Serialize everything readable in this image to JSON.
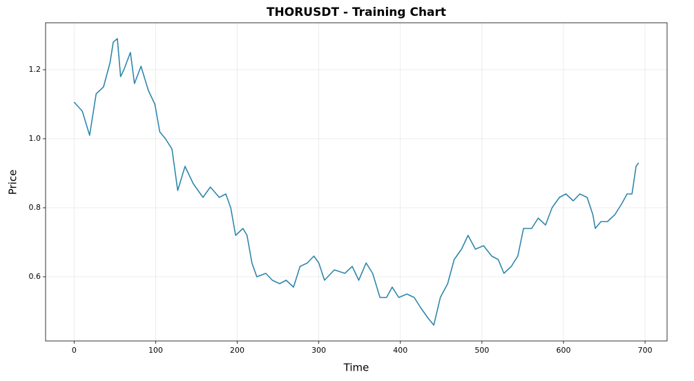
{
  "chart_data": {
    "type": "line",
    "title": "THORUSDT - Training Chart",
    "x_label": "Time",
    "y_label": "Price",
    "x": [
      0,
      10,
      19,
      27,
      36,
      44,
      48,
      53,
      57,
      61,
      69,
      74,
      82,
      91,
      99,
      105,
      112,
      120,
      127,
      136,
      146,
      158,
      167,
      178,
      186,
      192,
      198,
      207,
      212,
      218,
      224,
      235,
      243,
      252,
      260,
      269,
      277,
      286,
      294,
      300,
      307,
      319,
      332,
      341,
      349,
      358,
      366,
      375,
      383,
      390,
      398,
      408,
      417,
      425,
      434,
      441,
      449,
      458,
      466,
      475,
      483,
      492,
      502,
      512,
      520,
      527,
      536,
      544,
      551,
      561,
      569,
      578,
      586,
      595,
      603,
      612,
      620,
      629,
      636,
      639,
      646,
      654,
      663,
      671,
      678,
      684,
      689,
      692
    ],
    "values": [
      1.106,
      1.08,
      1.01,
      1.13,
      1.15,
      1.22,
      1.28,
      1.29,
      1.18,
      1.2,
      1.25,
      1.16,
      1.21,
      1.14,
      1.1,
      1.02,
      1.0,
      0.97,
      0.85,
      0.92,
      0.87,
      0.83,
      0.86,
      0.83,
      0.84,
      0.8,
      0.72,
      0.74,
      0.72,
      0.64,
      0.6,
      0.61,
      0.59,
      0.58,
      0.59,
      0.57,
      0.63,
      0.64,
      0.66,
      0.64,
      0.59,
      0.62,
      0.61,
      0.63,
      0.59,
      0.64,
      0.61,
      0.54,
      0.54,
      0.57,
      0.54,
      0.55,
      0.54,
      0.51,
      0.48,
      0.46,
      0.54,
      0.58,
      0.65,
      0.68,
      0.72,
      0.68,
      0.69,
      0.66,
      0.65,
      0.61,
      0.63,
      0.66,
      0.74,
      0.74,
      0.77,
      0.75,
      0.8,
      0.83,
      0.84,
      0.82,
      0.84,
      0.83,
      0.78,
      0.74,
      0.76,
      0.76,
      0.78,
      0.81,
      0.84,
      0.84,
      0.92,
      0.93
    ],
    "color": "#2e86ab",
    "xlim": [
      -35,
      727
    ],
    "xticks": [
      0,
      100,
      200,
      300,
      400,
      500,
      600,
      700
    ],
    "ylim": [
      0.414,
      1.336
    ],
    "yticks": [
      0.6,
      0.8,
      {
        "value": 1,
        "label": "1.0"
      },
      1.2
    ],
    "grid": true
  }
}
